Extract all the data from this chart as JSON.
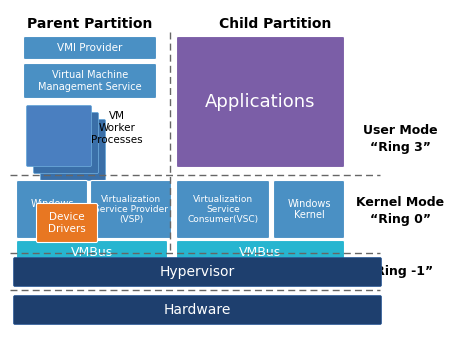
{
  "bg_color": "#ffffff",
  "title_parent": "Parent Partition",
  "title_child": "Child Partition",
  "label_user_mode": "User Mode",
  "label_ring3": "“Ring 3”",
  "label_kernel_mode": "Kernel Mode",
  "label_ring0": "“Ring 0”",
  "label_ring_minus1": "“Ring -1”",
  "blue_box": "#4a90c4",
  "blue_mid": "#4a7fc0",
  "blue_stacked": "#3a6fa8",
  "teal": "#27b5d0",
  "purple": "#7b5ea7",
  "orange": "#e87722",
  "hypervisor_color": "#1e3f6e",
  "hardware_color": "#1e3f6e",
  "win_kernel_color": "#4a90c4",
  "vsp_color": "#4a90c4",
  "vsc_color": "#4a90c4",
  "win_kernel_child_color": "#4a90c4",
  "vmbus_color": "#27b5d0"
}
